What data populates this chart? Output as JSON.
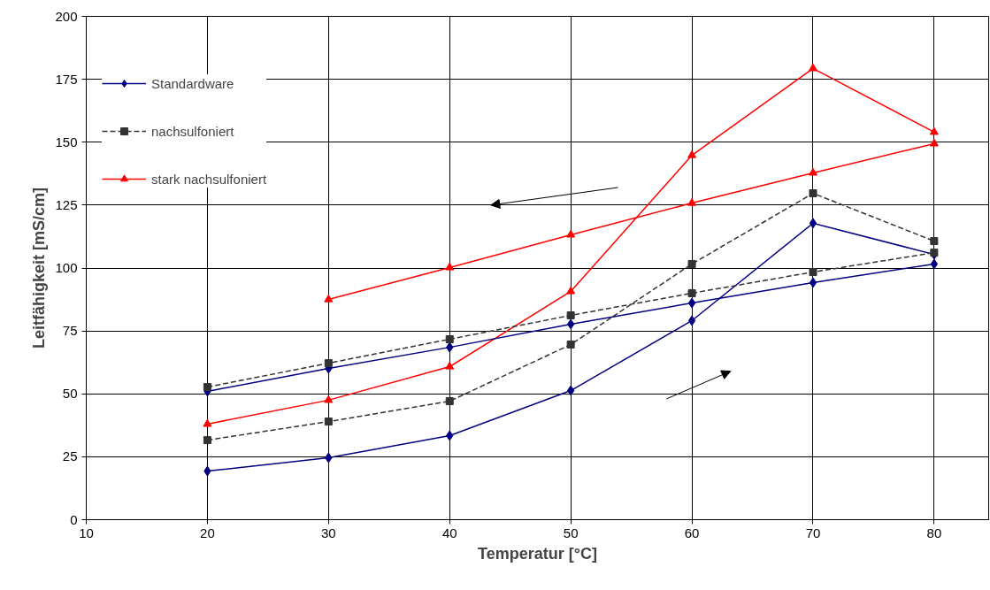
{
  "chart_data": {
    "type": "line",
    "xlabel": "Temperatur [°C]",
    "ylabel": "Leitfähigkeit [mS/cm]",
    "xlim": [
      10,
      84.5
    ],
    "xticks": [
      10,
      20,
      30,
      40,
      50,
      60,
      70,
      80
    ],
    "ylim": [
      0,
      200
    ],
    "yticks": [
      0,
      25,
      50,
      75,
      100,
      125,
      150,
      175,
      200
    ],
    "grid": true,
    "legend": "top left",
    "series": [
      {
        "name": "Standardware",
        "color": "#000080",
        "marker": "diamond",
        "line_style": "solid",
        "x": [
          20,
          30,
          40,
          50,
          60,
          70,
          80
        ],
        "values": [
          19.3,
          24.6,
          33.4,
          51.3,
          79.1,
          117.8,
          105.4
        ]
      },
      {
        "name": "nachsulfoniert",
        "color": "#333333",
        "marker": "square",
        "line_style": "dashed",
        "x": [
          20,
          30,
          40,
          50,
          60,
          70,
          80
        ],
        "values": [
          31.6,
          39,
          47.1,
          69.6,
          101.6,
          129.7,
          110.7
        ]
      },
      {
        "name": "stark nachsulfoniert",
        "color": "#ff0000",
        "marker": "triangle",
        "line_style": "solid",
        "x": [
          20,
          30,
          40,
          50,
          60,
          70,
          80
        ],
        "values": [
          38,
          47.5,
          60.8,
          90.7,
          144.8,
          179.3,
          154
        ]
      },
      {
        "color": "#000080",
        "marker": "diamond",
        "line_style": "solid",
        "x": [
          20,
          30,
          40,
          50,
          60,
          70,
          80
        ],
        "values": [
          51,
          60.1,
          68.5,
          77.7,
          86.1,
          94.2,
          101.6
        ]
      },
      {
        "color": "#333333",
        "marker": "square",
        "line_style": "dashed",
        "x": [
          20,
          30,
          40,
          50,
          60,
          70,
          80
        ],
        "values": [
          52.7,
          62.2,
          71.7,
          81.2,
          90,
          98.4,
          106.1
        ]
      },
      {
        "color": "#ff0000",
        "marker": "triangle",
        "line_style": "solid",
        "x": [
          30,
          40,
          50,
          60,
          70,
          80
        ],
        "values": [
          87.5,
          100.2,
          113.2,
          125.8,
          137.8,
          149.4
        ]
      }
    ]
  }
}
